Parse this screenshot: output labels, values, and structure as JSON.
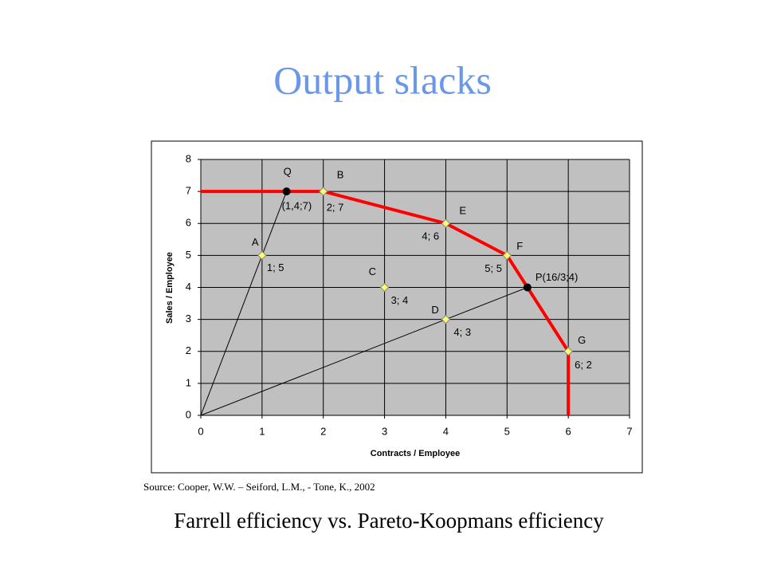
{
  "title": "Output slacks",
  "source": "Source: Cooper, W.W. – Seiford, L.M., - Tone, K., 2002",
  "subtitle": "Farrell efficiency vs. Pareto-Koopmans efficiency",
  "chart_data": {
    "type": "scatter",
    "x_label": "Contracts / Employee",
    "y_label": "Sales / Employee",
    "xlim": [
      0,
      7
    ],
    "ylim": [
      0,
      8
    ],
    "xticks": [
      0,
      1,
      2,
      3,
      4,
      5,
      6,
      7
    ],
    "yticks": [
      0,
      1,
      2,
      3,
      4,
      5,
      6,
      7,
      8
    ],
    "grid": true,
    "points": [
      {
        "label": "A",
        "x": 1,
        "y": 5,
        "value_label": "1; 5"
      },
      {
        "label": "B",
        "x": 2,
        "y": 7,
        "value_label": "2; 7"
      },
      {
        "label": "C",
        "x": 3,
        "y": 4,
        "value_label": "3; 4"
      },
      {
        "label": "D",
        "x": 4,
        "y": 3,
        "value_label": "4; 3"
      },
      {
        "label": "E",
        "x": 4,
        "y": 6,
        "value_label": "4; 6"
      },
      {
        "label": "F",
        "x": 5,
        "y": 5,
        "value_label": "5; 5"
      },
      {
        "label": "G",
        "x": 6,
        "y": 2,
        "value_label": "6; 2"
      }
    ],
    "point_color": "#ffff66",
    "projections": [
      {
        "label": "Q",
        "x": 1.4,
        "y": 7,
        "value_label": "(1,4;7)"
      },
      {
        "label": "P(16/3;4)",
        "x": 5.333,
        "y": 4
      }
    ],
    "frontier": {
      "color": "#ff0000",
      "x": [
        0,
        2,
        4,
        5,
        6,
        6
      ],
      "y": [
        7,
        7,
        6,
        5,
        2,
        0
      ]
    },
    "rays": [
      {
        "x": [
          0,
          1.4
        ],
        "y": [
          0,
          7
        ]
      },
      {
        "x": [
          0,
          5.333
        ],
        "y": [
          0,
          4
        ]
      }
    ]
  }
}
